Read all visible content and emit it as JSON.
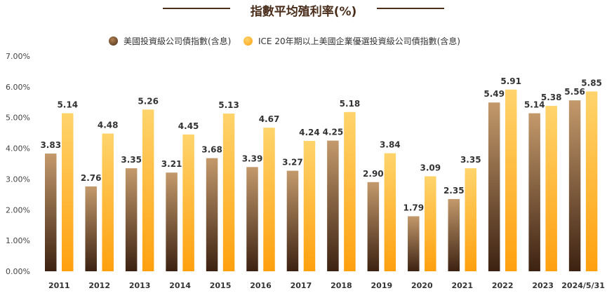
{
  "chart_data": {
    "type": "bar",
    "title": "指數平均殖利率(%)",
    "categories": [
      "2011",
      "2012",
      "2013",
      "2014",
      "2015",
      "2016",
      "2017",
      "2018",
      "2019",
      "2020",
      "2021",
      "2022",
      "2023",
      "2024/5/31"
    ],
    "series": [
      {
        "name": "美國投資級公司債指數(含息)",
        "color": "#7a5230",
        "values": [
          3.83,
          2.76,
          3.35,
          3.21,
          3.68,
          3.39,
          3.27,
          4.25,
          2.9,
          1.79,
          2.35,
          5.49,
          5.14,
          5.56
        ]
      },
      {
        "name": "ICE 20年期以上美國企業優選投資級公司債指數(含息)",
        "color": "#ffb42e",
        "values": [
          5.14,
          4.48,
          5.26,
          4.45,
          5.13,
          4.67,
          4.24,
          5.18,
          3.84,
          3.09,
          3.35,
          5.91,
          5.38,
          5.85
        ]
      }
    ],
    "ylim": [
      0,
      7
    ],
    "yticks": [
      "0.00%",
      "1.00%",
      "2.00%",
      "3.00%",
      "4.00%",
      "5.00%",
      "6.00%",
      "7.00%"
    ],
    "grid": false,
    "legend": "top",
    "xlabel": "",
    "ylabel": ""
  }
}
